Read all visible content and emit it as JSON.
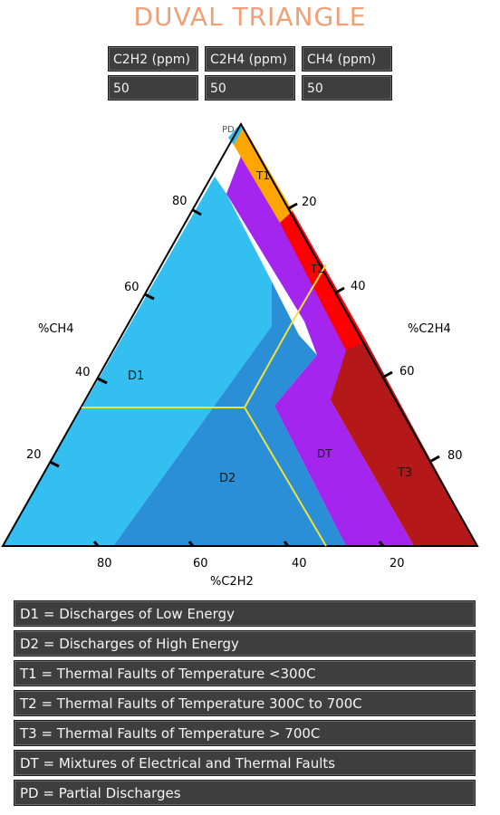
{
  "title": "DUVAL TRIANGLE",
  "inputs": [
    {
      "label": "C2H2 (ppm)",
      "value": "50"
    },
    {
      "label": "C2H4 (ppm)",
      "value": "50"
    },
    {
      "label": "CH4 (ppm)",
      "value": "50"
    }
  ],
  "diagram": {
    "axis_left": "%CH4",
    "axis_right": "%C2H4",
    "axis_bottom": "%C2H2",
    "ticks_left": [
      "80",
      "60",
      "40",
      "20"
    ],
    "ticks_right": [
      "20",
      "40",
      "60",
      "80"
    ],
    "ticks_bottom": [
      "80",
      "60",
      "40",
      "20"
    ],
    "zones": {
      "pd": "PD",
      "t1": "T1",
      "t2": "T2",
      "t3": "T3",
      "d1": "D1",
      "d2": "D2",
      "dt": "DT"
    },
    "colors": {
      "pd": "#2fbcf0",
      "d1": "#33bff0",
      "d2": "#2a8fd6",
      "dt": "#a425ee",
      "t1": "#ffa500",
      "t2": "#ff0000",
      "t3": "#b51818",
      "marker_line": "#f2e13a"
    }
  },
  "legend": [
    "D1 = Discharges of Low Energy",
    "D2 = Discharges of High Energy",
    "T1 = Thermal Faults of Temperature <300C",
    "T2 = Thermal Faults of Temperature 300C to 700C",
    "T3 = Thermal Faults of Temperature > 700C",
    "DT = Mixtures of Electrical and Thermal Faults",
    "PD = Partial Discharges"
  ]
}
